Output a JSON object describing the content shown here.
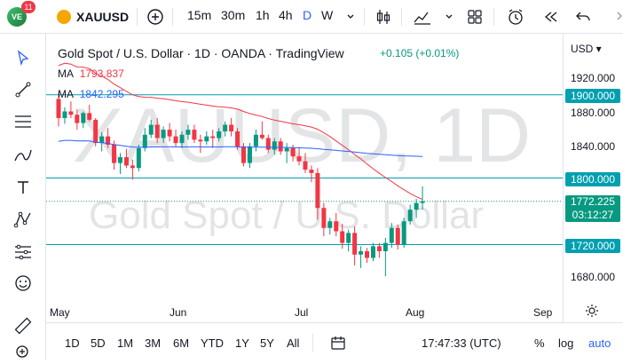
{
  "topbar": {
    "avatar_text": "VE",
    "notif_count": "11",
    "symbol": "XAUUSD",
    "intervals": [
      "15m",
      "30m",
      "1h",
      "4h",
      "D",
      "W"
    ],
    "active_interval": "D"
  },
  "legend": {
    "title": "Gold Spot / U.S. Dollar · 1D · OANDA · TradingView",
    "change": "+0.105 (+0.01%)",
    "ma1_label": "MA",
    "ma1_value": "1793.837",
    "ma2_label": "MA",
    "ma2_value": "1842.295"
  },
  "watermark": {
    "symbol": "XAUUSD, 1D",
    "name": "Gold Spot / U.S. Dollar"
  },
  "price_axis": {
    "currency": "USD",
    "labels": [
      "1920.000",
      "1880.000",
      "1840.000",
      "1680.000"
    ],
    "levels": [
      "1900.000",
      "1800.000",
      "1720.000"
    ],
    "last_price": "1772.225",
    "countdown": "03:12:27"
  },
  "time_axis": [
    "May",
    "Jun",
    "Jul",
    "Aug",
    "Sep"
  ],
  "bottom": {
    "ranges": [
      "1D",
      "5D",
      "1M",
      "3M",
      "6M",
      "YTD",
      "1Y",
      "5Y",
      "All"
    ],
    "clock": "17:47:33 (UTC)",
    "percent": "%",
    "log": "log",
    "auto": "auto"
  },
  "colors": {
    "up": "#089981",
    "down": "#f23645",
    "ma1": "#f23645",
    "ma2": "#2962ff",
    "level": "#00a0b0",
    "accent": "#2962ff"
  },
  "chart_data": {
    "type": "candlestick",
    "y_range": [
      1660,
      1940
    ],
    "horizontal_levels": [
      1900,
      1800,
      1720
    ],
    "candles": [
      [
        1895,
        1902,
        1862,
        1872
      ],
      [
        1872,
        1885,
        1865,
        1880
      ],
      [
        1880,
        1892,
        1872,
        1876
      ],
      [
        1876,
        1882,
        1858,
        1866
      ],
      [
        1866,
        1880,
        1860,
        1878
      ],
      [
        1878,
        1888,
        1868,
        1870
      ],
      [
        1870,
        1872,
        1838,
        1842
      ],
      [
        1842,
        1855,
        1832,
        1850
      ],
      [
        1850,
        1860,
        1836,
        1840
      ],
      [
        1840,
        1845,
        1810,
        1818
      ],
      [
        1818,
        1830,
        1805,
        1825
      ],
      [
        1825,
        1835,
        1812,
        1815
      ],
      [
        1815,
        1822,
        1798,
        1812
      ],
      [
        1812,
        1840,
        1808,
        1836
      ],
      [
        1836,
        1860,
        1832,
        1852
      ],
      [
        1852,
        1870,
        1848,
        1864
      ],
      [
        1864,
        1872,
        1842,
        1848
      ],
      [
        1848,
        1862,
        1842,
        1858
      ],
      [
        1858,
        1866,
        1844,
        1850
      ],
      [
        1850,
        1858,
        1838,
        1842
      ],
      [
        1842,
        1856,
        1836,
        1852
      ],
      [
        1852,
        1864,
        1846,
        1858
      ],
      [
        1858,
        1864,
        1842,
        1846
      ],
      [
        1846,
        1852,
        1830,
        1844
      ],
      [
        1844,
        1856,
        1840,
        1850
      ],
      [
        1850,
        1858,
        1836,
        1848
      ],
      [
        1848,
        1860,
        1844,
        1856
      ],
      [
        1856,
        1868,
        1850,
        1864
      ],
      [
        1864,
        1872,
        1850,
        1856
      ],
      [
        1856,
        1860,
        1834,
        1838
      ],
      [
        1838,
        1842,
        1814,
        1818
      ],
      [
        1818,
        1842,
        1812,
        1838
      ],
      [
        1838,
        1858,
        1832,
        1852
      ],
      [
        1852,
        1868,
        1846,
        1848
      ],
      [
        1848,
        1852,
        1830,
        1834
      ],
      [
        1834,
        1848,
        1828,
        1844
      ],
      [
        1844,
        1848,
        1828,
        1832
      ],
      [
        1832,
        1842,
        1818,
        1836
      ],
      [
        1836,
        1840,
        1820,
        1826
      ],
      [
        1826,
        1836,
        1815,
        1820
      ],
      [
        1820,
        1830,
        1806,
        1810
      ],
      [
        1810,
        1815,
        1795,
        1806
      ],
      [
        1806,
        1812,
        1750,
        1764
      ],
      [
        1764,
        1770,
        1730,
        1740
      ],
      [
        1740,
        1752,
        1732,
        1748
      ],
      [
        1748,
        1758,
        1730,
        1736
      ],
      [
        1736,
        1745,
        1715,
        1722
      ],
      [
        1722,
        1738,
        1712,
        1734
      ],
      [
        1734,
        1742,
        1695,
        1708
      ],
      [
        1708,
        1718,
        1692,
        1712
      ],
      [
        1712,
        1716,
        1698,
        1704
      ],
      [
        1704,
        1722,
        1700,
        1718
      ],
      [
        1718,
        1722,
        1704,
        1712
      ],
      [
        1712,
        1728,
        1682,
        1722
      ],
      [
        1722,
        1746,
        1716,
        1740
      ],
      [
        1740,
        1744,
        1714,
        1720
      ],
      [
        1720,
        1752,
        1716,
        1748
      ],
      [
        1748,
        1768,
        1744,
        1762
      ],
      [
        1762,
        1775,
        1752,
        1770
      ],
      [
        1770,
        1790,
        1762,
        1772
      ]
    ]
  }
}
